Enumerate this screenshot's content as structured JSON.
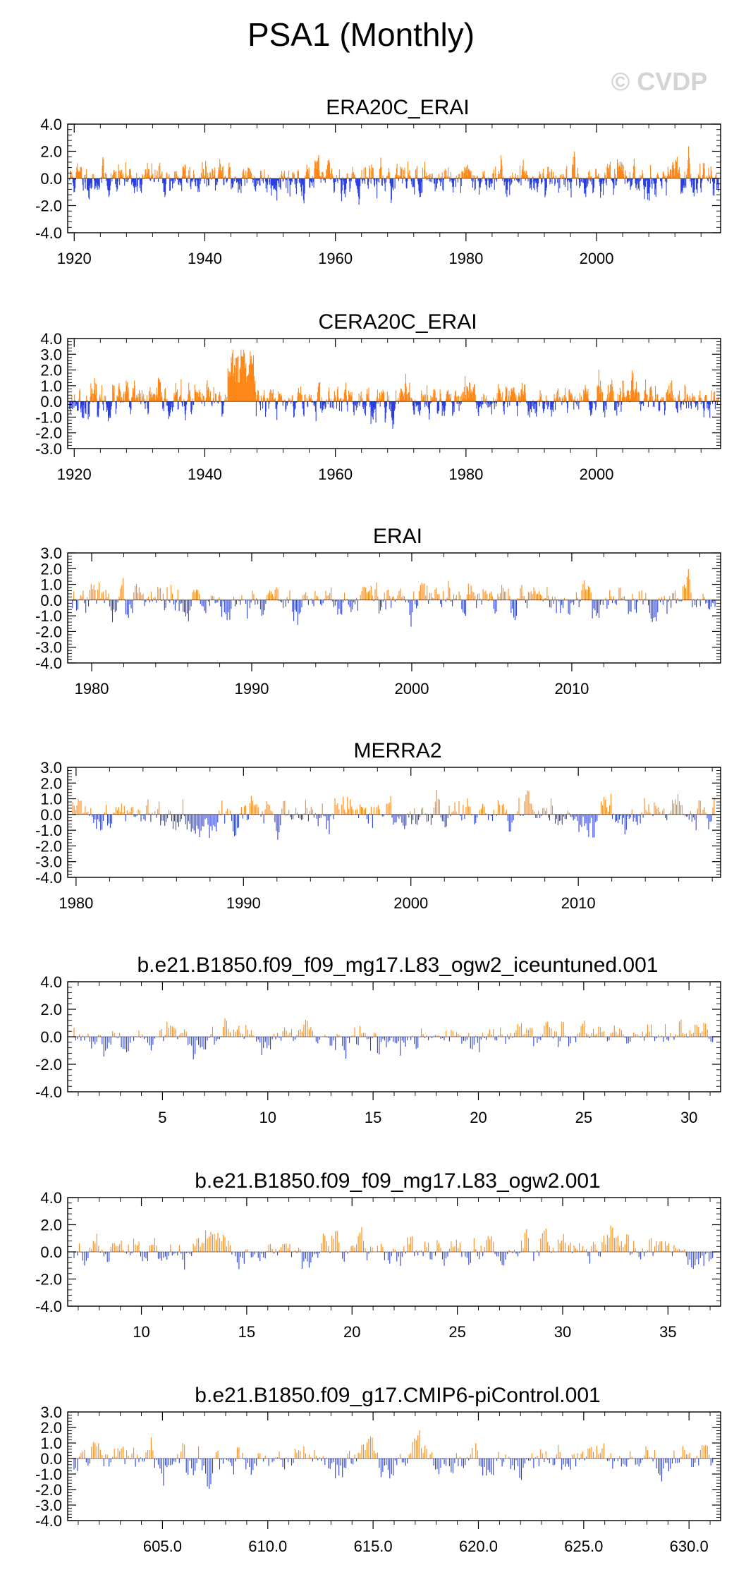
{
  "figure": {
    "title": "PSA1 (Monthly)",
    "watermark": "© CVDP",
    "colors": {
      "positive": "#ff8717",
      "negative": "#2a3fe0",
      "frame": "#000000"
    }
  },
  "chart_data": [
    {
      "type": "bar",
      "title": "ERA20C_ERAI",
      "x_range": [
        1919,
        2019
      ],
      "x_ticks": [
        1920,
        1940,
        1960,
        1980,
        2000
      ],
      "x_tick_labels": [
        "1920",
        "1940",
        "1960",
        "1980",
        "2000"
      ],
      "ylim": [
        -4.0,
        4.0
      ],
      "y_ticks": [
        -4.0,
        -2.0,
        0.0,
        2.0,
        4.0
      ],
      "y_tick_labels": [
        "-4.0",
        "-2.0",
        "0.0",
        "2.0",
        "4.0"
      ],
      "amp": 0.9,
      "max": 3.1,
      "min": -3.4,
      "seed": 11,
      "step": 0.0833,
      "envelope": []
    },
    {
      "type": "bar",
      "title": "CERA20C_ERAI",
      "x_range": [
        1919,
        2019
      ],
      "x_ticks": [
        1920,
        1940,
        1960,
        1980,
        2000
      ],
      "x_tick_labels": [
        "1920",
        "1940",
        "1960",
        "1980",
        "2000"
      ],
      "ylim": [
        -3.0,
        4.0
      ],
      "y_ticks": [
        -3.0,
        -2.0,
        -1.0,
        0.0,
        1.0,
        2.0,
        3.0,
        4.0
      ],
      "y_tick_labels": [
        "-3.0",
        "-2.0",
        "-1.0",
        "0.0",
        "1.0",
        "2.0",
        "3.0",
        "4.0"
      ],
      "amp": 0.8,
      "max": 3.3,
      "min": -2.8,
      "seed": 23,
      "step": 0.0833,
      "envelope": [
        [
          1943.5,
          1947.5,
          1.6,
          2.2
        ]
      ]
    },
    {
      "type": "bar",
      "title": "ERAI",
      "x_range": [
        1978.5,
        2019.3
      ],
      "x_ticks": [
        1980,
        1990,
        2000,
        2010
      ],
      "x_tick_labels": [
        "1980",
        "1990",
        "2000",
        "2010"
      ],
      "ylim": [
        -4.0,
        3.0
      ],
      "y_ticks": [
        -4.0,
        -3.0,
        -2.0,
        -1.0,
        0.0,
        1.0,
        2.0,
        3.0
      ],
      "y_tick_labels": [
        "-4.0",
        "-3.0",
        "-2.0",
        "-1.0",
        "0.0",
        "1.0",
        "2.0",
        "3.0"
      ],
      "amp": 0.85,
      "max": 2.6,
      "min": -2.9,
      "seed": 37,
      "step": 0.0833,
      "envelope": []
    },
    {
      "type": "bar",
      "title": "MERRA2",
      "x_range": [
        1979.5,
        2018.5
      ],
      "x_ticks": [
        1980,
        1990,
        2000,
        2010
      ],
      "x_tick_labels": [
        "1980",
        "1990",
        "2000",
        "2010"
      ],
      "ylim": [
        -4.0,
        3.0
      ],
      "y_ticks": [
        -4.0,
        -3.0,
        -2.0,
        -1.0,
        0.0,
        1.0,
        2.0,
        3.0
      ],
      "y_tick_labels": [
        "-4.0",
        "-3.0",
        "-2.0",
        "-1.0",
        "0.0",
        "1.0",
        "2.0",
        "3.0"
      ],
      "amp": 0.85,
      "max": 2.6,
      "min": -2.9,
      "seed": 41,
      "step": 0.0833,
      "envelope": []
    },
    {
      "type": "bar",
      "title": "b.e21.B1850.f09_f09_mg17.L83_ogw2_iceuntuned.001",
      "x_range": [
        0.5,
        31.5
      ],
      "x_ticks": [
        5,
        10,
        15,
        20,
        25,
        30
      ],
      "x_tick_labels": [
        "5",
        "10",
        "15",
        "20",
        "25",
        "30"
      ],
      "ylim": [
        -4.0,
        4.0
      ],
      "y_ticks": [
        -4.0,
        -2.0,
        0.0,
        2.0,
        4.0
      ],
      "y_tick_labels": [
        "-4.0",
        "-2.0",
        "0.0",
        "2.0",
        "4.0"
      ],
      "amp": 0.85,
      "max": 2.9,
      "min": -2.9,
      "seed": 53,
      "step": 0.0833,
      "envelope": []
    },
    {
      "type": "bar",
      "title": "b.e21.B1850.f09_f09_mg17.L83_ogw2.001",
      "x_range": [
        6.5,
        37.5
      ],
      "x_ticks": [
        10,
        15,
        20,
        25,
        30,
        35
      ],
      "x_tick_labels": [
        "10",
        "15",
        "20",
        "25",
        "30",
        "35"
      ],
      "ylim": [
        -4.0,
        4.0
      ],
      "y_ticks": [
        -4.0,
        -2.0,
        0.0,
        2.0,
        4.0
      ],
      "y_tick_labels": [
        "-4.0",
        "-2.0",
        "0.0",
        "2.0",
        "4.0"
      ],
      "amp": 0.85,
      "max": 3.2,
      "min": -3.0,
      "seed": 67,
      "step": 0.0833,
      "envelope": []
    },
    {
      "type": "bar",
      "title": "b.e21.B1850.f09_g17.CMIP6-piControl.001",
      "x_range": [
        600.5,
        631.5
      ],
      "x_ticks": [
        605.0,
        610.0,
        615.0,
        620.0,
        625.0,
        630.0
      ],
      "x_tick_labels": [
        "605.0",
        "610.0",
        "615.0",
        "620.0",
        "625.0",
        "630.0"
      ],
      "ylim": [
        -4.0,
        3.0
      ],
      "y_ticks": [
        -4.0,
        -3.0,
        -2.0,
        -1.0,
        0.0,
        1.0,
        2.0,
        3.0
      ],
      "y_tick_labels": [
        "-4.0",
        "-3.0",
        "-2.0",
        "-1.0",
        "0.0",
        "1.0",
        "2.0",
        "3.0"
      ],
      "amp": 0.85,
      "max": 2.6,
      "min": -3.5,
      "seed": 79,
      "step": 0.0833,
      "envelope": []
    }
  ]
}
